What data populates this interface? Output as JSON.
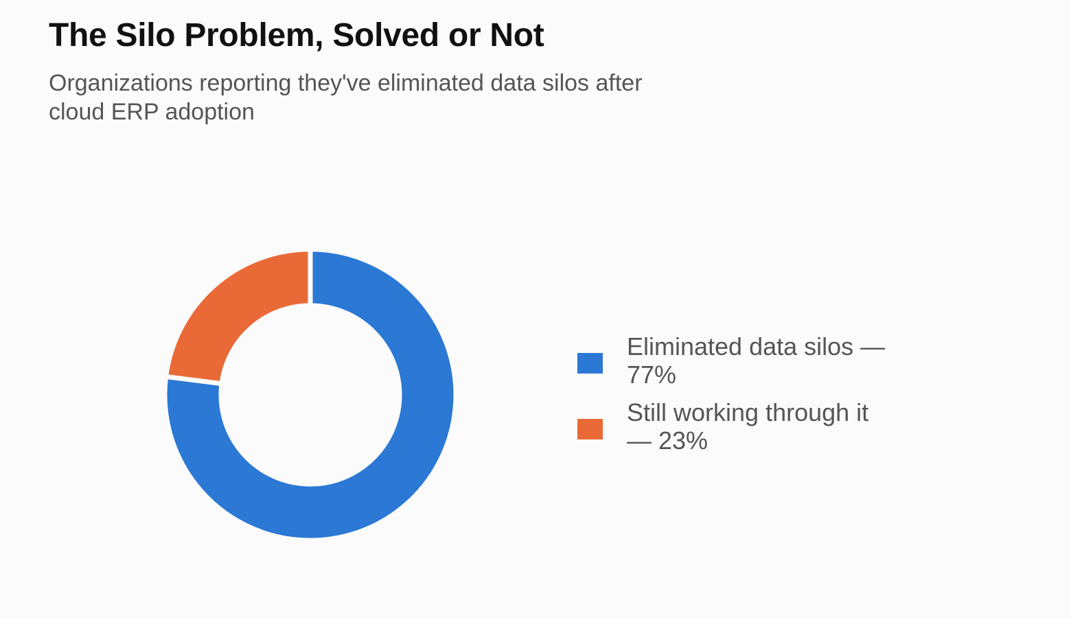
{
  "chart_data": {
    "type": "pie",
    "style": "donut",
    "title": "The Silo Problem, Solved or Not",
    "subtitle": "Organizations reporting they've eliminated data silos after cloud ERP adoption",
    "unit": "%",
    "slices": [
      {
        "label": "Eliminated data silos — 77%",
        "value": 77,
        "color": "#2b78d5"
      },
      {
        "label": "Still working through it — 23%",
        "value": 23,
        "color": "#ea6a37"
      }
    ],
    "legend_position": "right"
  }
}
